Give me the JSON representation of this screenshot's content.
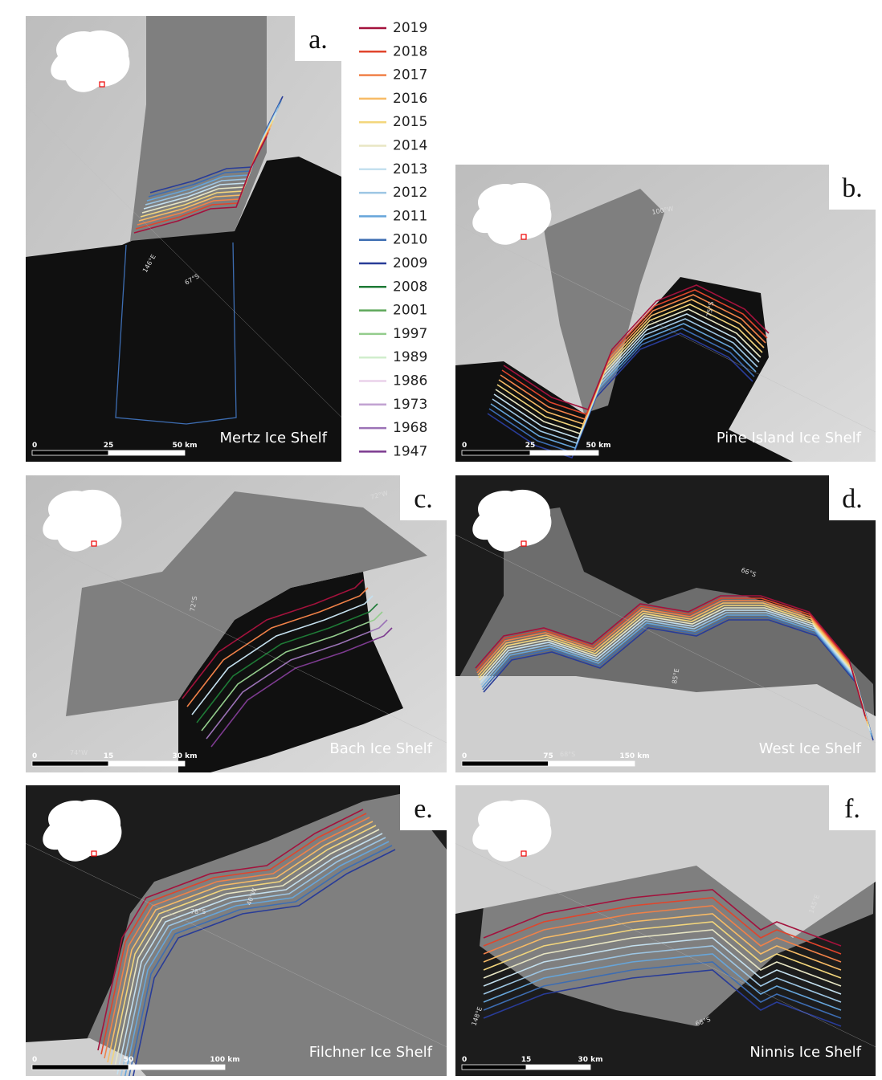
{
  "legend": [
    {
      "label": "2019",
      "color": "#a3123c"
    },
    {
      "label": "2018",
      "color": "#e0452c"
    },
    {
      "label": "2017",
      "color": "#f08148"
    },
    {
      "label": "2016",
      "color": "#f7bb66"
    },
    {
      "label": "2015",
      "color": "#f3d67c"
    },
    {
      "label": "2014",
      "color": "#e8e6c4"
    },
    {
      "label": "2013",
      "color": "#c4e0ef"
    },
    {
      "label": "2012",
      "color": "#9dc6e4"
    },
    {
      "label": "2011",
      "color": "#66a5da"
    },
    {
      "label": "2010",
      "color": "#3d6db2"
    },
    {
      "label": "2009",
      "color": "#283c98"
    },
    {
      "label": "2008",
      "color": "#1e7a36"
    },
    {
      "label": "2001",
      "color": "#5ea85a"
    },
    {
      "label": "1997",
      "color": "#93cc8c"
    },
    {
      "label": "1989",
      "color": "#d0edcc"
    },
    {
      "label": "1986",
      "color": "#ead2ea"
    },
    {
      "label": "1973",
      "color": "#c2a2d2"
    },
    {
      "label": "1968",
      "color": "#9b72b6"
    },
    {
      "label": "1947",
      "color": "#7c3a8f"
    }
  ],
  "panels": [
    {
      "letter": "a.",
      "name": "Mertz Ice Shelf",
      "scale": [
        "0",
        "25",
        "50 km"
      ],
      "coords": [
        "146°E",
        "67°S"
      ]
    },
    {
      "letter": "b.",
      "name": "Pine Island Ice Shelf",
      "scale": [
        "0",
        "25",
        "50 km"
      ],
      "coords": [
        "100°W",
        "75°S"
      ]
    },
    {
      "letter": "c.",
      "name": "Bach Ice Shelf",
      "scale": [
        "0",
        "15",
        "30 km"
      ],
      "coords": [
        "72°W",
        "72°S",
        "74°W"
      ]
    },
    {
      "letter": "d.",
      "name": "West Ice Shelf",
      "scale": [
        "0",
        "75",
        "150 km"
      ],
      "coords": [
        "66°S",
        "85°E",
        "68°S"
      ]
    },
    {
      "letter": "e.",
      "name": "Filchner Ice Shelf",
      "scale": [
        "0",
        "50",
        "100 km"
      ],
      "coords": [
        "78°S",
        "40°W"
      ]
    },
    {
      "letter": "f.",
      "name": "Ninnis Ice Shelf",
      "scale": [
        "0",
        "15",
        "30 km"
      ],
      "coords": [
        "68°S",
        "148°E",
        "145°E"
      ]
    }
  ]
}
